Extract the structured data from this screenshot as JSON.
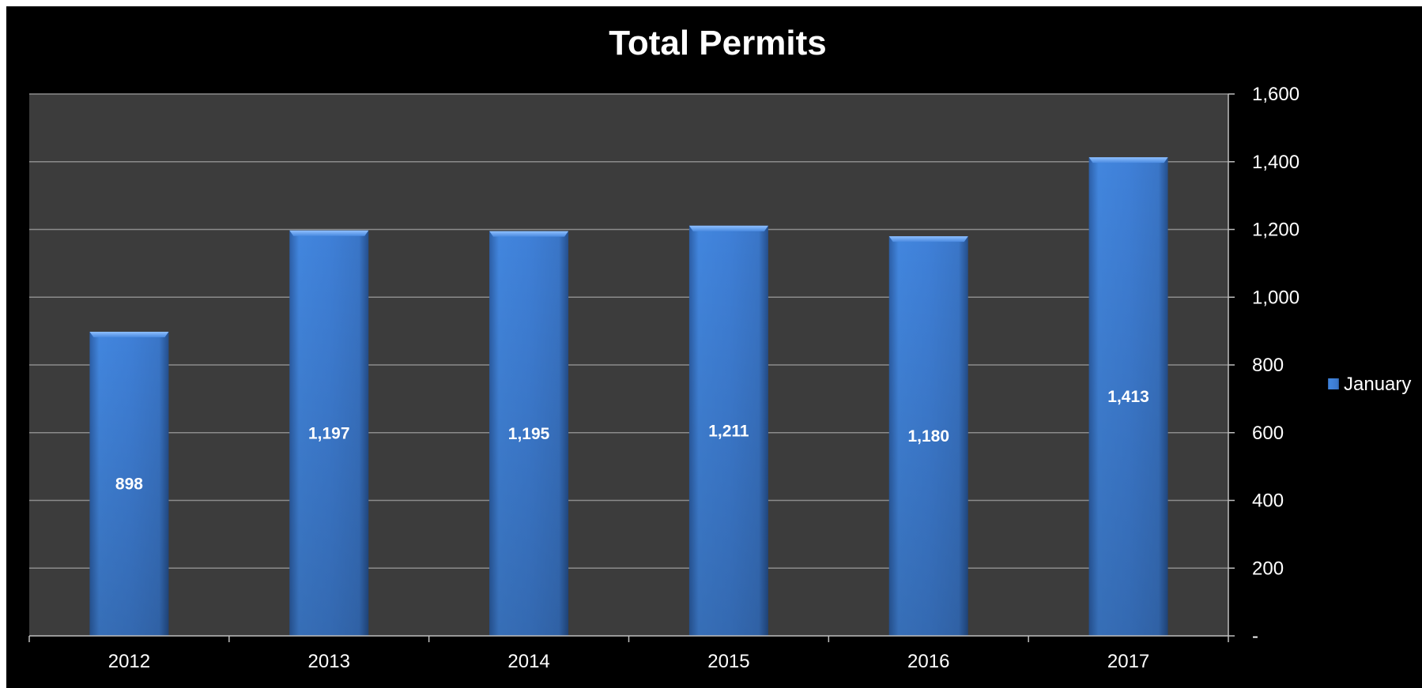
{
  "chart_data": {
    "type": "bar",
    "title": "Total Permits",
    "xlabel": "",
    "ylabel": "",
    "categories": [
      "2012",
      "2013",
      "2014",
      "2015",
      "2016",
      "2017"
    ],
    "series": [
      {
        "name": "January",
        "values": [
          898,
          1197,
          1195,
          1211,
          1180,
          1413
        ],
        "value_labels": [
          "898",
          "1,197",
          "1,195",
          "1,211",
          "1,180",
          "1,413"
        ]
      }
    ],
    "ylim": [
      0,
      1600
    ],
    "yticks": [
      0,
      200,
      400,
      600,
      800,
      1000,
      1200,
      1400,
      1600
    ],
    "ytick_labels": [
      "-",
      "200",
      "400",
      "600",
      "800",
      "1,000",
      "1,200",
      "1,400",
      "1,600"
    ],
    "y_axis_side": "right",
    "grid": true,
    "legend": "right",
    "colors": {
      "background": "#000000",
      "plot_area": "#3c3c3c",
      "gridline": "#8c8c8c",
      "bar": "#3e7fd6",
      "text": "#ffffff"
    }
  }
}
